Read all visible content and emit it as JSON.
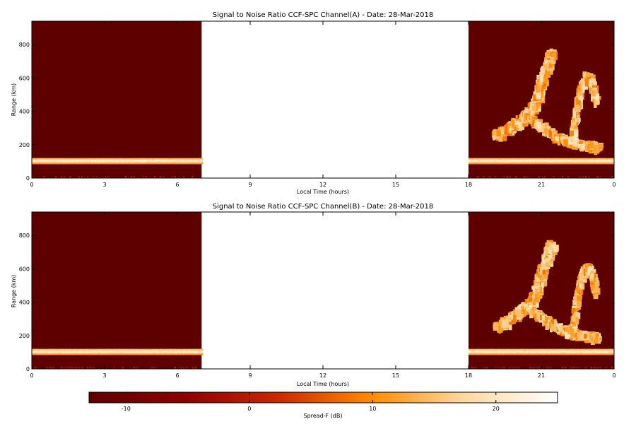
{
  "chart_data": [
    {
      "type": "heatmap",
      "title": "Signal to Noise Ratio CCF-SPC Channel(A) - Date: 28-Mar-2018",
      "xlabel": "Local Time (hours)",
      "ylabel": "Range (km)",
      "xlim": [
        0,
        24
      ],
      "ylim": [
        0,
        940
      ],
      "x_ticks": [
        "0",
        "3",
        "6",
        "9",
        "12",
        "15",
        "18",
        "21",
        "0"
      ],
      "y_ticks": [
        "0",
        "200",
        "400",
        "600",
        "800"
      ],
      "no_data_interval_hours": [
        7,
        18
      ],
      "background_db": -15,
      "e_layer_echo": {
        "range_km": [
          85,
          120
        ],
        "snr_db": [
          10,
          26
        ]
      },
      "spread_f_plume": {
        "start_hour": 19.0,
        "end_hour": 23.3,
        "max_range_km": 760,
        "snr_db": [
          8,
          20
        ]
      }
    },
    {
      "type": "heatmap",
      "title": "Signal to Noise Ratio CCF-SPC Channel(B) - Date: 28-Mar-2018",
      "xlabel": "Local Time (hours)",
      "ylabel": "Range (km)",
      "xlim": [
        0,
        24
      ],
      "ylim": [
        0,
        940
      ],
      "x_ticks": [
        "0",
        "3",
        "6",
        "9",
        "12",
        "15",
        "18",
        "21",
        "0"
      ],
      "y_ticks": [
        "0",
        "200",
        "400",
        "600",
        "800"
      ],
      "no_data_interval_hours": [
        7,
        18
      ],
      "background_db": -15,
      "e_layer_echo": {
        "range_km": [
          85,
          120
        ],
        "snr_db": [
          10,
          26
        ]
      },
      "spread_f_plume": {
        "start_hour": 19.0,
        "end_hour": 23.3,
        "max_range_km": 760,
        "snr_db": [
          8,
          20
        ]
      }
    }
  ],
  "colorbar": {
    "label": "Spread-F (dB)",
    "min": -13,
    "max": 25,
    "ticks": [
      "-10",
      "0",
      "10",
      "20"
    ],
    "tick_values": [
      -10,
      0,
      10,
      20
    ],
    "colors": [
      "#5e0000",
      "#8a0000",
      "#c82800",
      "#ff8a00",
      "#ffd8a0",
      "#ffffff"
    ]
  }
}
